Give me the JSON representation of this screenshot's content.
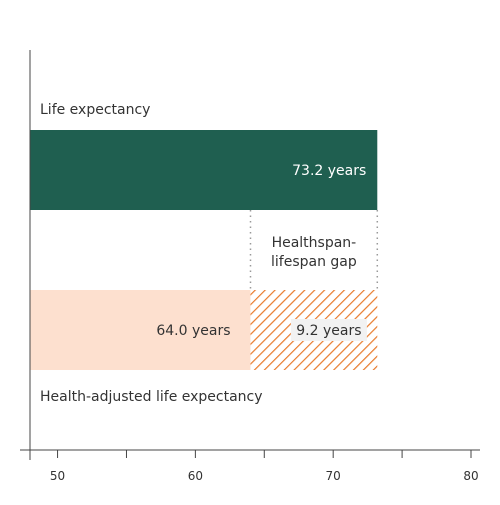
{
  "chart_data": {
    "type": "bar",
    "orientation": "horizontal",
    "title": "",
    "xlabel": "",
    "ylabel": "",
    "xlim": [
      48,
      80
    ],
    "x_ticks": [
      50,
      60,
      70,
      80
    ],
    "x_tick_labels": [
      "50",
      "60",
      "70",
      "80"
    ],
    "grid": false,
    "categories": [
      "Life expectancy",
      "Health-adjusted life expectancy"
    ],
    "series": [
      {
        "values": [
          73.2,
          64.0
        ]
      }
    ],
    "bars": [
      {
        "category": "Life expectancy",
        "value": 73.2,
        "value_label": "73.2 years",
        "color": "#1f5f50"
      },
      {
        "category": "Health-adjusted life expectancy",
        "value": 64.0,
        "value_label": "64.0 years",
        "color": "#fde0cf"
      }
    ],
    "gap": {
      "from": 64.0,
      "to": 73.2,
      "value": 9.2,
      "value_label": "9.2 years",
      "label": "Healthspan-\nlifespan gap",
      "label_lines": [
        "Healthspan-",
        "lifespan gap"
      ],
      "pattern": "diagonal-hatch",
      "color": "#e87a2c"
    },
    "colors": {
      "axis": "#444444",
      "text": "#333333",
      "value_text_dark_bar": "#ffffff",
      "dotted_line": "#999999",
      "gap_label_background": "#f2f2f2"
    }
  }
}
